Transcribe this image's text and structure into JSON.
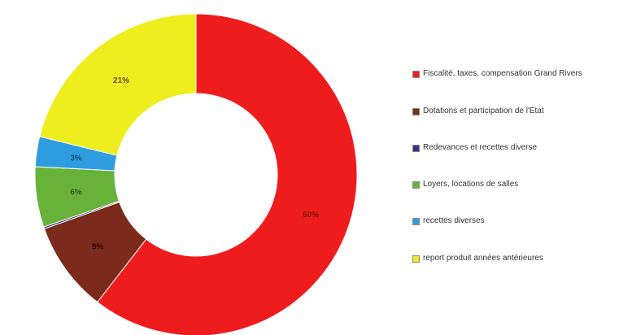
{
  "chart_data": {
    "type": "pie",
    "donut": true,
    "legend_position": "right",
    "categories": [
      "Fiscalité, taxes, compensation Grand Rivers",
      "Dotations et participation de l'Etat",
      "Redevances et recettes diverse",
      "Loyers, locations de salles",
      "recettes diverses",
      "report produit années antérieures"
    ],
    "values": [
      60,
      9,
      0,
      6,
      3,
      21
    ],
    "labels": [
      "60%",
      "9%",
      "",
      "6%",
      "3%",
      "21%"
    ],
    "colors": [
      "#ee1c1c",
      "#7b2a1c",
      "#3b2f86",
      "#69b23a",
      "#2e9de0",
      "#eeee1e"
    ],
    "label_colors": [
      "#7a1a10",
      "#2a0c08",
      "#ffffff",
      "#2f5a18",
      "#1c4a78",
      "#6a4a10"
    ]
  }
}
